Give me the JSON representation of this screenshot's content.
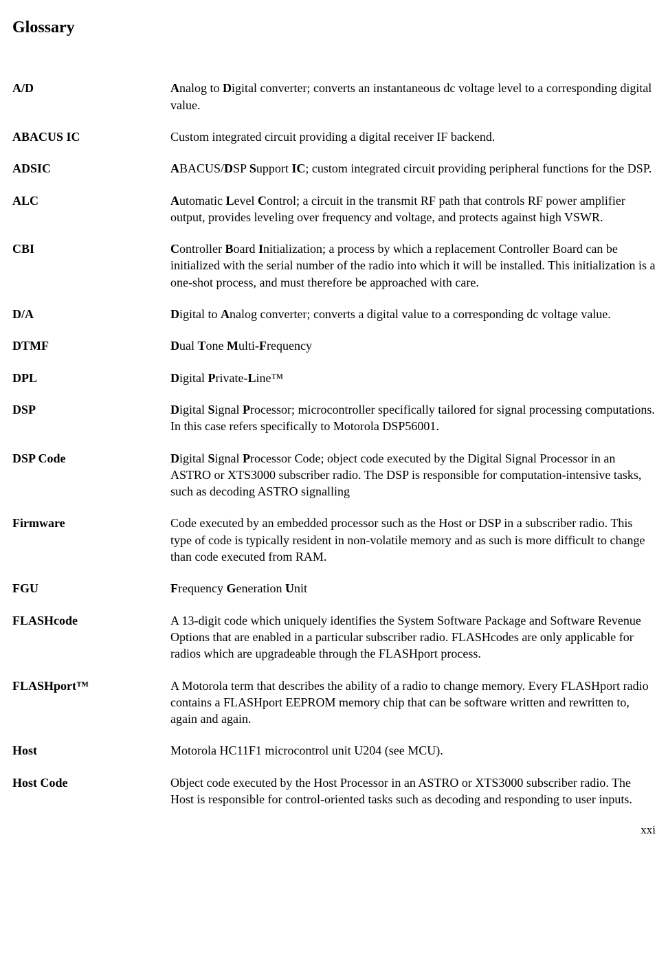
{
  "title": "Glossary",
  "page_number": "xxi",
  "entries": [
    {
      "term": "A/D",
      "def": "<b>A</b>nalog to <b>D</b>igital converter; converts an instantaneous dc voltage level to a corresponding digital value."
    },
    {
      "term": "ABACUS IC",
      "def": "Custom integrated circuit providing a digital receiver IF backend."
    },
    {
      "term": "ADSIC",
      "def": "<b>A</b>BACUS/<b>D</b>SP <b>S</b>upport <b>IC</b>; custom integrated circuit providing peripheral functions for the DSP."
    },
    {
      "term": "ALC",
      "def": "<b>A</b>utomatic <b>L</b>evel <b>C</b>ontrol; a circuit in the transmit RF path that controls RF power amplifier output, provides leveling over frequency and voltage, and protects against high VSWR."
    },
    {
      "term": "CBI",
      "def": "<b>C</b>ontroller <b>B</b>oard <b>I</b>nitialization; a process by which a replacement Controller Board can be initialized with the serial number of the radio into which it will be installed.  This initialization is a one-shot process, and must therefore be approached with care."
    },
    {
      "term": "D/A",
      "def": "<b>D</b>igital to <b>A</b>nalog converter; converts a digital value to a corresponding dc voltage value."
    },
    {
      "term": "DTMF",
      "def": "<b>D</b>ual <b>T</b>one <b>M</b>ulti-<b>F</b>requency"
    },
    {
      "term": "DPL",
      "def": "<b>D</b>igital <b>P</b>rivate-<b>L</b>ine™"
    },
    {
      "term": "DSP",
      "def": "<b>D</b>igital <b>S</b>ignal <b>P</b>rocessor; microcontroller specifically tailored for signal processing computations. In this case refers specifically to Motorola DSP56001."
    },
    {
      "term": "DSP Code",
      "def": "<b>D</b>igital <b>S</b>ignal <b>P</b>rocessor Code; object code executed by the Digital Signal Processor in an ASTRO or XTS3000 subscriber radio.  The DSP is responsible for computation-intensive tasks, such as decoding ASTRO signalling"
    },
    {
      "term": "Firmware",
      "def": "Code executed by an embedded processor such as the Host or DSP in a subscriber radio. This type of code is typically resident in non-volatile memory and as such is more difficult to change than code executed from RAM."
    },
    {
      "term": "FGU",
      "def": "<b>F</b>requency <b>G</b>eneration <b>U</b>nit"
    },
    {
      "term": "FLASHcode",
      "def": "A 13-digit code which uniquely identifies the System Software Package and Software Revenue Options that are enabled in a particular subscriber radio. FLASHcodes are only applicable for radios which are upgradeable through the FLASHport process."
    },
    {
      "term": "FLASHport™",
      "def": "A Motorola term that describes the ability of a radio to change memory. Every FLASHport radio contains a FLASHport EEPROM memory chip that can be software written and rewritten to, again and again."
    },
    {
      "term": "Host",
      "def": "Motorola HC11F1 microcontrol unit U204 (see MCU)."
    },
    {
      "term": "Host Code",
      "def": "Object code executed by the Host Processor in an ASTRO or XTS3000 subscriber radio. The Host is responsible for control-oriented tasks such as decoding and responding to user inputs."
    }
  ]
}
